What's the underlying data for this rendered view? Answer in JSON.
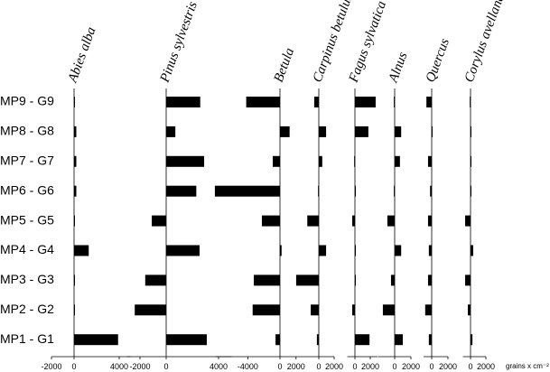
{
  "chart_data": {
    "type": "bar",
    "orientation": "horizontal",
    "color": "#000000",
    "categories": [
      "MP9 - G9",
      "MP8 - G8",
      "MP7 - G7",
      "MP6 - G6",
      "MP5 - G5",
      "MP4 - G4",
      "MP3 - G3",
      "MP2 - G2",
      "MP1 - G1"
    ],
    "xlabel": "grains x cm⁻²",
    "panels": [
      {
        "title": "Abies alba",
        "values": [
          50,
          200,
          200,
          200,
          50,
          1300,
          50,
          50,
          3900
        ],
        "xlim": [
          -2000,
          5000
        ],
        "xticks": [
          -2000,
          0,
          4000
        ]
      },
      {
        "title": "Pinus sylvestris",
        "values": [
          2600,
          700,
          2900,
          2300,
          -1100,
          2550,
          -1600,
          -2400,
          3100
        ],
        "xlim": [
          -3000,
          5000
        ],
        "xticks": [
          -2000,
          0,
          4000
        ]
      },
      {
        "title": "Betula",
        "values": [
          -4200,
          1200,
          -900,
          -8100,
          -2250,
          200,
          -3250,
          -3400,
          -550
        ],
        "xlim": [
          -8000,
          2000
        ],
        "xticks": [
          -4000,
          0,
          2000
        ]
      },
      {
        "title": "Carpinus betulus",
        "values": [
          -600,
          950,
          450,
          -100,
          -1500,
          950,
          -2950,
          -1050,
          -250
        ],
        "xlim": [
          -3000,
          2000
        ],
        "xticks": [
          0,
          2000
        ]
      },
      {
        "title": "Fagus sylvatica",
        "values": [
          2700,
          1750,
          -100,
          100,
          -350,
          50,
          50,
          -350,
          1900
        ],
        "xlim": [
          -1000,
          3000
        ],
        "xticks": [
          0,
          2000
        ]
      },
      {
        "title": "Alnus",
        "values": [
          -100,
          800,
          650,
          -100,
          -900,
          800,
          -450,
          -1450,
          1000
        ],
        "xlim": [
          -2000,
          2000
        ],
        "xticks": [
          0,
          2000
        ]
      },
      {
        "title": "Quercus",
        "values": [
          -650,
          100,
          -450,
          -200,
          -450,
          -350,
          -450,
          -800,
          -350
        ],
        "xlim": [
          -1000,
          2000
        ],
        "xticks": [
          0,
          2000
        ]
      },
      {
        "title": "Corylus avellana",
        "values": [
          -100,
          100,
          50,
          50,
          -700,
          350,
          -700,
          -350,
          250
        ],
        "xlim": [
          -1000,
          2000
        ],
        "xticks": [
          0,
          2000
        ]
      }
    ]
  }
}
